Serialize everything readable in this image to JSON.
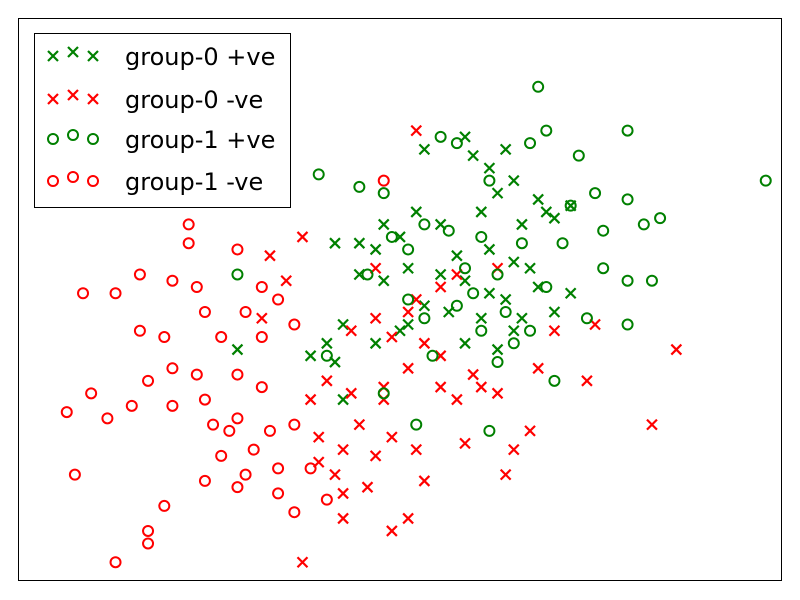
{
  "chart_data": {
    "type": "scatter",
    "title": "",
    "xlabel": "",
    "ylabel": "",
    "xlim": [
      -4.2,
      5.2
    ],
    "ylim": [
      -4.4,
      4.6
    ],
    "grid": false,
    "axes_ticks": false,
    "legend": {
      "position": "top-left",
      "marker_repeat": 3
    },
    "colors": {
      "green": "#008000",
      "red": "#ff0000",
      "axis": "#000000"
    },
    "series": [
      {
        "name": "group-0 +ve",
        "marker": "x",
        "color": "#008000",
        "points": [
          [
            1.3,
            2.7
          ],
          [
            0.8,
            2.5
          ],
          [
            1.6,
            2.2
          ],
          [
            1.8,
            2.5
          ],
          [
            1.9,
            2.0
          ],
          [
            1.4,
            2.4
          ],
          [
            1.7,
            1.8
          ],
          [
            2.3,
            1.5
          ],
          [
            2.6,
            1.6
          ],
          [
            2.4,
            1.4
          ],
          [
            2.2,
            1.7
          ],
          [
            0.3,
            1.3
          ],
          [
            0.5,
            1.1
          ],
          [
            0.0,
            1.0
          ],
          [
            0.2,
            0.9
          ],
          [
            -0.3,
            1.0
          ],
          [
            0.7,
            1.5
          ],
          [
            1.0,
            1.3
          ],
          [
            1.5,
            1.5
          ],
          [
            2.0,
            1.3
          ],
          [
            1.2,
            0.8
          ],
          [
            1.6,
            0.9
          ],
          [
            1.9,
            0.7
          ],
          [
            2.1,
            0.6
          ],
          [
            1.0,
            0.5
          ],
          [
            0.6,
            0.6
          ],
          [
            0.3,
            0.4
          ],
          [
            0.0,
            0.5
          ],
          [
            1.3,
            0.4
          ],
          [
            1.6,
            0.2
          ],
          [
            1.8,
            0.1
          ],
          [
            2.0,
            -0.2
          ],
          [
            2.4,
            -0.1
          ],
          [
            1.1,
            -0.1
          ],
          [
            0.8,
            0.0
          ],
          [
            0.6,
            -0.3
          ],
          [
            -0.2,
            -0.3
          ],
          [
            -0.4,
            -0.6
          ],
          [
            -0.3,
            -0.9
          ],
          [
            0.2,
            -0.6
          ],
          [
            0.5,
            -0.4
          ],
          [
            1.3,
            -0.6
          ],
          [
            1.7,
            -0.7
          ],
          [
            1.9,
            -0.4
          ],
          [
            -0.2,
            -1.5
          ],
          [
            -1.5,
            -0.7
          ],
          [
            -0.6,
            -0.8
          ],
          [
            1.5,
            -0.2
          ],
          [
            2.2,
            0.3
          ],
          [
            2.6,
            0.2
          ]
        ]
      },
      {
        "name": "group-0 -ve",
        "marker": "x",
        "color": "#ff0000",
        "points": [
          [
            0.7,
            2.8
          ],
          [
            -0.7,
            1.1
          ],
          [
            -1.1,
            0.8
          ],
          [
            -0.9,
            0.4
          ],
          [
            0.2,
            0.6
          ],
          [
            0.7,
            0.1
          ],
          [
            1.0,
            0.3
          ],
          [
            1.7,
            0.6
          ],
          [
            1.2,
            0.5
          ],
          [
            0.6,
            -0.1
          ],
          [
            0.2,
            -0.2
          ],
          [
            -0.1,
            -0.4
          ],
          [
            0.4,
            -0.5
          ],
          [
            0.8,
            -0.6
          ],
          [
            1.0,
            -0.8
          ],
          [
            0.6,
            -1.0
          ],
          [
            0.3,
            -1.3
          ],
          [
            -0.4,
            -1.2
          ],
          [
            -0.6,
            -1.5
          ],
          [
            -0.1,
            -1.4
          ],
          [
            0.3,
            -1.5
          ],
          [
            1.0,
            -1.3
          ],
          [
            1.2,
            -1.5
          ],
          [
            1.5,
            -1.3
          ],
          [
            1.7,
            -1.4
          ],
          [
            0.0,
            -1.9
          ],
          [
            -0.5,
            -2.1
          ],
          [
            0.4,
            -2.1
          ],
          [
            0.7,
            -2.3
          ],
          [
            0.2,
            -2.4
          ],
          [
            -0.2,
            -2.3
          ],
          [
            -0.5,
            -2.5
          ],
          [
            -0.3,
            -2.7
          ],
          [
            0.1,
            -2.9
          ],
          [
            -0.2,
            -3.0
          ],
          [
            0.8,
            -2.8
          ],
          [
            0.6,
            -3.4
          ],
          [
            -0.2,
            -3.4
          ],
          [
            1.3,
            -2.2
          ],
          [
            1.9,
            -2.3
          ],
          [
            2.1,
            -2.0
          ],
          [
            1.8,
            -2.7
          ],
          [
            2.4,
            -0.4
          ],
          [
            2.9,
            -0.3
          ],
          [
            3.9,
            -0.7
          ],
          [
            2.2,
            -1.0
          ],
          [
            2.8,
            -1.2
          ],
          [
            1.4,
            -1.1
          ],
          [
            0.4,
            -3.6
          ],
          [
            -0.7,
            -4.1
          ],
          [
            3.6,
            -1.9
          ],
          [
            -1.2,
            -0.2
          ]
        ]
      },
      {
        "name": "group-1 +ve",
        "marker": "o",
        "color": "#008000",
        "points": [
          [
            2.2,
            3.5
          ],
          [
            2.3,
            2.8
          ],
          [
            1.0,
            2.7
          ],
          [
            1.2,
            2.6
          ],
          [
            2.1,
            2.6
          ],
          [
            2.7,
            2.4
          ],
          [
            3.3,
            2.8
          ],
          [
            -0.5,
            2.1
          ],
          [
            0.3,
            1.8
          ],
          [
            1.6,
            2.0
          ],
          [
            2.9,
            1.8
          ],
          [
            3.3,
            1.7
          ],
          [
            3.7,
            1.4
          ],
          [
            0.8,
            1.3
          ],
          [
            1.1,
            1.2
          ],
          [
            1.5,
            1.1
          ],
          [
            2.0,
            1.0
          ],
          [
            2.5,
            1.0
          ],
          [
            3.0,
            1.2
          ],
          [
            3.5,
            1.3
          ],
          [
            0.4,
            1.1
          ],
          [
            -1.5,
            0.5
          ],
          [
            0.1,
            0.5
          ],
          [
            0.6,
            0.9
          ],
          [
            1.3,
            0.6
          ],
          [
            1.7,
            0.5
          ],
          [
            2.3,
            0.3
          ],
          [
            3.0,
            0.6
          ],
          [
            3.3,
            0.4
          ],
          [
            3.6,
            0.4
          ],
          [
            0.6,
            0.1
          ],
          [
            1.4,
            0.2
          ],
          [
            1.8,
            -0.1
          ],
          [
            1.2,
            0.0
          ],
          [
            0.8,
            -0.2
          ],
          [
            1.5,
            -0.4
          ],
          [
            1.9,
            -0.6
          ],
          [
            2.1,
            -0.4
          ],
          [
            2.8,
            -0.2
          ],
          [
            3.3,
            -0.3
          ],
          [
            -0.4,
            -0.8
          ],
          [
            0.9,
            -0.8
          ],
          [
            1.7,
            -0.9
          ],
          [
            2.4,
            -1.2
          ],
          [
            0.3,
            -1.4
          ],
          [
            1.6,
            -2.0
          ],
          [
            0.7,
            -1.9
          ],
          [
            5.0,
            2.0
          ],
          [
            0.0,
            1.9
          ],
          [
            2.6,
            1.6
          ]
        ]
      },
      {
        "name": "group-1 -ve",
        "marker": "o",
        "color": "#ff0000",
        "points": [
          [
            0.3,
            2.0
          ],
          [
            -2.1,
            1.3
          ],
          [
            -2.1,
            1.0
          ],
          [
            -1.5,
            0.9
          ],
          [
            -2.7,
            0.5
          ],
          [
            -3.4,
            0.2
          ],
          [
            -3.0,
            0.2
          ],
          [
            -2.3,
            0.4
          ],
          [
            -2.0,
            0.3
          ],
          [
            -1.2,
            0.3
          ],
          [
            -1.0,
            0.1
          ],
          [
            -1.9,
            -0.1
          ],
          [
            -1.4,
            -0.1
          ],
          [
            -0.8,
            -0.3
          ],
          [
            -2.7,
            -0.4
          ],
          [
            -2.4,
            -0.5
          ],
          [
            -1.7,
            -0.5
          ],
          [
            -1.2,
            -0.5
          ],
          [
            -2.3,
            -1.0
          ],
          [
            -2.6,
            -1.2
          ],
          [
            -2.0,
            -1.1
          ],
          [
            -1.5,
            -1.1
          ],
          [
            -1.2,
            -1.3
          ],
          [
            -3.3,
            -1.4
          ],
          [
            -2.8,
            -1.6
          ],
          [
            -2.3,
            -1.6
          ],
          [
            -1.8,
            -1.9
          ],
          [
            -1.5,
            -1.8
          ],
          [
            -1.1,
            -2.0
          ],
          [
            -0.8,
            -1.9
          ],
          [
            -3.6,
            -1.7
          ],
          [
            -3.1,
            -1.8
          ],
          [
            -1.6,
            -2.0
          ],
          [
            -1.7,
            -2.4
          ],
          [
            -1.4,
            -2.7
          ],
          [
            -1.0,
            -3.0
          ],
          [
            -0.6,
            -2.6
          ],
          [
            -0.8,
            -3.3
          ],
          [
            -0.4,
            -3.1
          ],
          [
            -2.4,
            -3.2
          ],
          [
            -2.6,
            -3.6
          ],
          [
            -2.6,
            -3.8
          ],
          [
            -3.0,
            -4.1
          ],
          [
            -3.5,
            -2.7
          ],
          [
            -1.9,
            -2.8
          ],
          [
            -1.3,
            -2.3
          ],
          [
            -1.9,
            -1.5
          ],
          [
            -1.5,
            -2.9
          ],
          [
            -1.0,
            -2.6
          ]
        ]
      }
    ]
  }
}
